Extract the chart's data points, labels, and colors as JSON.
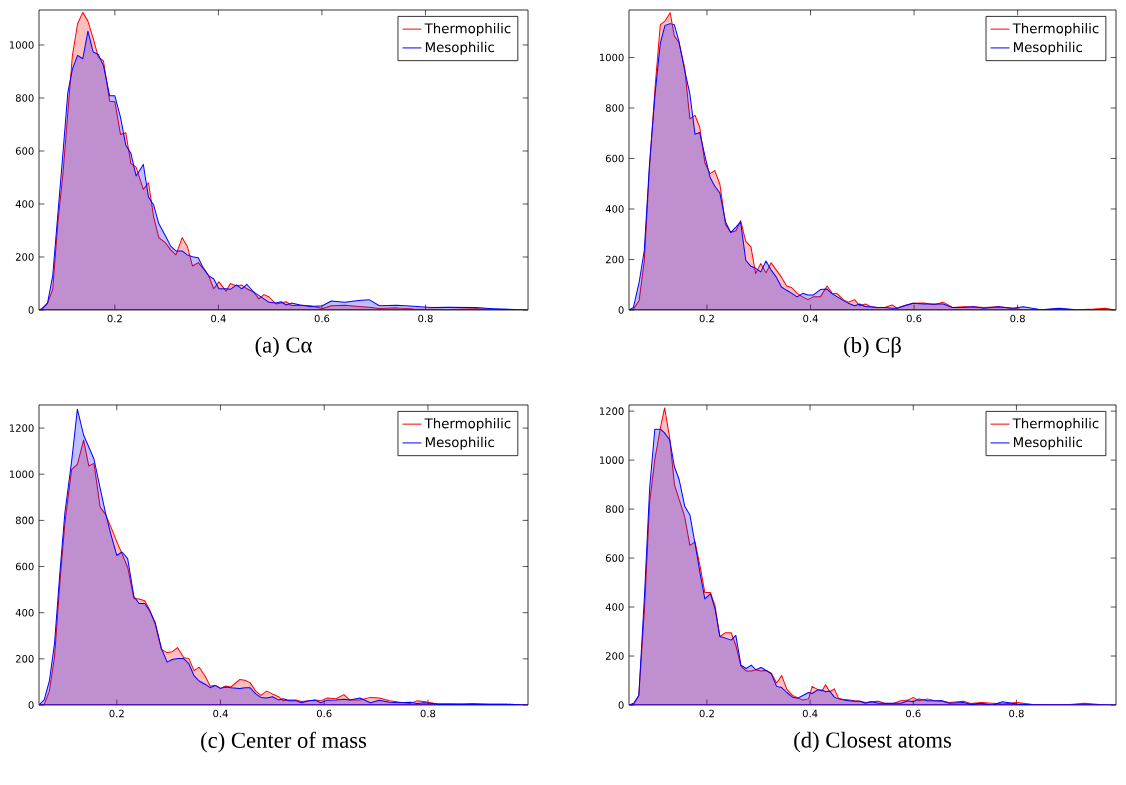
{
  "chart_data": [
    {
      "type": "area",
      "title": "(a) Cα",
      "legend": "top right",
      "xlim": [
        0.0535,
        0.998
      ],
      "ylim": [
        0,
        1132
      ],
      "xticks": [
        0.2,
        0.4,
        0.6,
        0.8
      ],
      "yticks": [
        0,
        200,
        400,
        600,
        800,
        1000
      ],
      "x": [
        0.0535,
        0.06,
        0.07,
        0.08,
        0.09,
        0.1,
        0.109,
        0.118,
        0.128,
        0.138,
        0.148,
        0.158,
        0.168,
        0.178,
        0.19,
        0.2,
        0.211,
        0.221,
        0.231,
        0.241,
        0.255,
        0.265,
        0.275,
        0.285,
        0.298,
        0.308,
        0.318,
        0.33,
        0.34,
        0.35,
        0.361,
        0.371,
        0.381,
        0.391,
        0.401,
        0.415,
        0.423,
        0.435,
        0.445,
        0.455,
        0.468,
        0.478,
        0.488,
        0.498,
        0.511,
        0.521,
        0.531,
        0.541,
        0.558,
        0.578,
        0.601,
        0.618,
        0.644,
        0.671,
        0.691,
        0.711,
        0.744,
        0.777,
        0.811,
        0.844,
        0.897,
        0.931,
        0.997
      ],
      "series": [
        {
          "name": "Thermophilic",
          "color": "#ff0000",
          "values": [
            0,
            5,
            26,
            78,
            330,
            520,
            740,
            960,
            1080,
            1123,
            1090,
            1026,
            955,
            940,
            788,
            786,
            662,
            669,
            552,
            539,
            455,
            480,
            350,
            273,
            253,
            227,
            208,
            273,
            240,
            166,
            179,
            156,
            130,
            80,
            106,
            71,
            100,
            91,
            94,
            80,
            68,
            42,
            58,
            49,
            23,
            26,
            31,
            17,
            18,
            16,
            6,
            16,
            18,
            13,
            10,
            6,
            8,
            4,
            3,
            2,
            5,
            2,
            0
          ]
        },
        {
          "name": "Mesophilic",
          "color": "#0000ff",
          "values": [
            0,
            6,
            26,
            130,
            364,
            597,
            818,
            909,
            961,
            948,
            1052,
            974,
            964,
            922,
            808,
            808,
            727,
            623,
            591,
            506,
            549,
            426,
            396,
            325,
            279,
            240,
            223,
            223,
            208,
            201,
            197,
            158,
            130,
            117,
            80,
            80,
            78,
            95,
            80,
            97,
            68,
            55,
            42,
            29,
            26,
            31,
            19,
            26,
            19,
            13,
            16,
            34,
            29,
            36,
            39,
            16,
            18,
            14,
            9,
            10,
            9,
            5,
            0
          ]
        }
      ]
    },
    {
      "type": "area",
      "title": "(b) Cβ",
      "legend": "top right",
      "xlim": [
        0.0495,
        0.99
      ],
      "ylim": [
        0,
        1188
      ],
      "xticks": [
        0.2,
        0.4,
        0.6,
        0.8
      ],
      "yticks": [
        0,
        200,
        400,
        600,
        800,
        1000
      ],
      "x": [
        0.0495,
        0.058,
        0.069,
        0.079,
        0.089,
        0.1,
        0.11,
        0.119,
        0.129,
        0.137,
        0.146,
        0.157,
        0.167,
        0.177,
        0.186,
        0.196,
        0.206,
        0.215,
        0.225,
        0.236,
        0.246,
        0.256,
        0.265,
        0.275,
        0.285,
        0.294,
        0.304,
        0.314,
        0.324,
        0.334,
        0.344,
        0.354,
        0.364,
        0.374,
        0.385,
        0.395,
        0.405,
        0.419,
        0.432,
        0.442,
        0.452,
        0.463,
        0.473,
        0.485,
        0.495,
        0.506,
        0.517,
        0.529,
        0.543,
        0.558,
        0.567,
        0.581,
        0.598,
        0.619,
        0.639,
        0.656,
        0.674,
        0.694,
        0.715,
        0.735,
        0.763,
        0.79,
        0.811,
        0.845,
        0.88,
        0.914,
        0.948,
        0.969,
        0.988
      ],
      "series": [
        {
          "name": "Thermophilic",
          "color": "#ff0000",
          "values": [
            0,
            3,
            38,
            194,
            562,
            887,
            1130,
            1144,
            1177,
            1085,
            1059,
            958,
            757,
            771,
            724,
            583,
            540,
            552,
            498,
            338,
            307,
            314,
            354,
            272,
            250,
            144,
            184,
            147,
            187,
            158,
            130,
            95,
            88,
            66,
            52,
            41,
            52,
            52,
            95,
            66,
            64,
            41,
            31,
            41,
            17,
            24,
            13,
            10,
            10,
            20,
            7,
            17,
            27,
            28,
            21,
            31,
            10,
            13,
            13,
            10,
            13,
            7,
            1,
            1,
            4,
            1,
            4,
            7,
            0
          ]
        },
        {
          "name": "Mesophilic",
          "color": "#0000ff",
          "values": [
            0,
            10,
            109,
            236,
            576,
            859,
            1057,
            1127,
            1134,
            1130,
            1064,
            950,
            856,
            696,
            703,
            611,
            526,
            491,
            463,
            349,
            307,
            328,
            349,
            197,
            173,
            165,
            151,
            194,
            158,
            130,
            91,
            78,
            66,
            52,
            66,
            59,
            59,
            81,
            83,
            64,
            52,
            38,
            27,
            17,
            24,
            13,
            13,
            10,
            10,
            7,
            7,
            17,
            27,
            24,
            24,
            24,
            10,
            10,
            13,
            7,
            13,
            7,
            13,
            1,
            7,
            1,
            1,
            1,
            0
          ]
        }
      ]
    },
    {
      "type": "area",
      "title": "(c) Center of mass",
      "legend": "top right",
      "xlim": [
        0.05,
        0.993
      ],
      "ylim": [
        0,
        1300
      ],
      "xticks": [
        0.2,
        0.4,
        0.6,
        0.8
      ],
      "yticks": [
        0,
        200,
        400,
        600,
        800,
        1000,
        1200
      ],
      "x": [
        0.05,
        0.06,
        0.07,
        0.08,
        0.09,
        0.1,
        0.113,
        0.124,
        0.136,
        0.146,
        0.156,
        0.168,
        0.178,
        0.188,
        0.2,
        0.21,
        0.221,
        0.233,
        0.243,
        0.254,
        0.264,
        0.274,
        0.286,
        0.297,
        0.307,
        0.317,
        0.329,
        0.339,
        0.349,
        0.359,
        0.371,
        0.38,
        0.39,
        0.4,
        0.41,
        0.42,
        0.437,
        0.447,
        0.457,
        0.468,
        0.478,
        0.489,
        0.5,
        0.512,
        0.521,
        0.533,
        0.546,
        0.556,
        0.57,
        0.583,
        0.593,
        0.606,
        0.623,
        0.638,
        0.649,
        0.669,
        0.689,
        0.706,
        0.726,
        0.746,
        0.766,
        0.779,
        0.792,
        0.819,
        0.839,
        0.865,
        0.885,
        0.918,
        0.952,
        0.993
      ],
      "series": [
        {
          "name": "Thermophilic",
          "color": "#ff0000",
          "values": [
            0,
            3,
            60,
            209,
            522,
            790,
            1021,
            1043,
            1148,
            1036,
            1047,
            857,
            827,
            775,
            708,
            656,
            596,
            462,
            459,
            452,
            410,
            350,
            241,
            227,
            231,
            249,
            206,
            201,
            149,
            164,
            122,
            82,
            85,
            72,
            82,
            78,
            110,
            107,
            97,
            60,
            42,
            60,
            48,
            36,
            18,
            22,
            22,
            15,
            18,
            22,
            18,
            30,
            27,
            45,
            22,
            22,
            33,
            30,
            18,
            12,
            7,
            18,
            15,
            4,
            4,
            3,
            6,
            3,
            3,
            0
          ]
        },
        {
          "name": "Mesophilic",
          "color": "#0000ff",
          "values": [
            0,
            22,
            104,
            268,
            566,
            835,
            1058,
            1282,
            1170,
            1118,
            1066,
            939,
            835,
            745,
            648,
            663,
            634,
            470,
            440,
            440,
            405,
            358,
            246,
            186,
            197,
            201,
            201,
            179,
            127,
            104,
            89,
            75,
            85,
            72,
            78,
            75,
            72,
            75,
            75,
            48,
            33,
            30,
            36,
            22,
            27,
            18,
            18,
            10,
            18,
            21,
            10,
            21,
            22,
            25,
            22,
            30,
            10,
            21,
            12,
            10,
            12,
            7,
            10,
            4,
            4,
            4,
            3,
            3,
            3,
            0
          ]
        }
      ]
    },
    {
      "type": "area",
      "title": "(d) Closest atoms",
      "legend": "top right",
      "xlim": [
        0.049,
        0.993
      ],
      "ylim": [
        0,
        1225
      ],
      "xticks": [
        0.2,
        0.4,
        0.6,
        0.8
      ],
      "yticks": [
        0,
        200,
        400,
        600,
        800,
        1000,
        1200
      ],
      "x": [
        0.049,
        0.058,
        0.068,
        0.079,
        0.089,
        0.099,
        0.11,
        0.118,
        0.128,
        0.137,
        0.146,
        0.157,
        0.167,
        0.177,
        0.187,
        0.196,
        0.207,
        0.216,
        0.225,
        0.236,
        0.247,
        0.256,
        0.266,
        0.276,
        0.286,
        0.295,
        0.305,
        0.315,
        0.325,
        0.335,
        0.345,
        0.355,
        0.366,
        0.376,
        0.386,
        0.397,
        0.404,
        0.414,
        0.423,
        0.43,
        0.438,
        0.447,
        0.455,
        0.466,
        0.476,
        0.486,
        0.497,
        0.507,
        0.518,
        0.533,
        0.545,
        0.562,
        0.576,
        0.59,
        0.6,
        0.611,
        0.628,
        0.642,
        0.656,
        0.67,
        0.697,
        0.711,
        0.732,
        0.753,
        0.773,
        0.801,
        0.829,
        0.856,
        0.898,
        0.932,
        0.967,
        0.993
      ],
      "series": [
        {
          "name": "Thermophilic",
          "color": "#ff0000",
          "values": [
            0,
            3,
            39,
            389,
            827,
            1002,
            1133,
            1213,
            1089,
            900,
            841,
            768,
            652,
            666,
            564,
            459,
            459,
            404,
            280,
            295,
            295,
            244,
            159,
            139,
            139,
            144,
            139,
            141,
            130,
            90,
            120,
            64,
            39,
            29,
            20,
            25,
            76,
            64,
            57,
            83,
            54,
            66,
            28,
            22,
            20,
            17,
            15,
            10,
            13,
            15,
            6,
            7,
            17,
            20,
            31,
            17,
            25,
            17,
            15,
            10,
            15,
            6,
            10,
            7,
            4,
            10,
            3,
            1,
            1,
            7,
            1,
            0
          ]
        },
        {
          "name": "Mesophilic",
          "color": "#0000ff",
          "values": [
            0,
            7,
            39,
            448,
            885,
            1126,
            1126,
            1111,
            1082,
            973,
            922,
            812,
            776,
            659,
            535,
            433,
            455,
            389,
            280,
            273,
            265,
            284,
            163,
            149,
            163,
            144,
            153,
            141,
            127,
            76,
            71,
            51,
            32,
            28,
            39,
            51,
            47,
            61,
            61,
            54,
            57,
            32,
            25,
            20,
            17,
            15,
            15,
            7,
            13,
            7,
            7,
            7,
            7,
            17,
            13,
            25,
            17,
            17,
            17,
            7,
            10,
            3,
            7,
            0,
            13,
            4,
            1,
            1,
            1,
            1,
            1,
            0
          ]
        }
      ]
    }
  ]
}
